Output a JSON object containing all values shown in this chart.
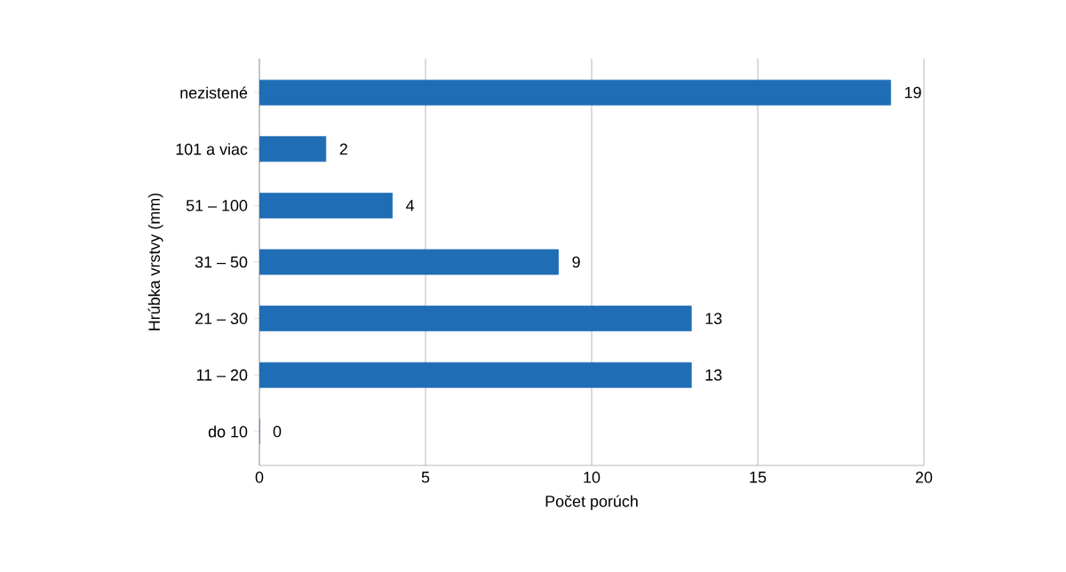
{
  "chart_data": {
    "type": "bar",
    "orientation": "horizontal",
    "xlabel": "Počet porúch",
    "ylabel": "Hrúbka vrstvy (mm)",
    "categories": [
      "nezistené",
      "101 a viac",
      "51 – 100",
      "31 – 50",
      "21 – 30",
      "11 – 20",
      "do 10"
    ],
    "values": [
      19,
      2,
      4,
      9,
      13,
      13,
      0
    ],
    "color": "#1f6db5",
    "xlim": [
      0,
      20
    ],
    "xticks": [
      0,
      5,
      10,
      15,
      20
    ],
    "grid": "x",
    "data_labels": true
  }
}
